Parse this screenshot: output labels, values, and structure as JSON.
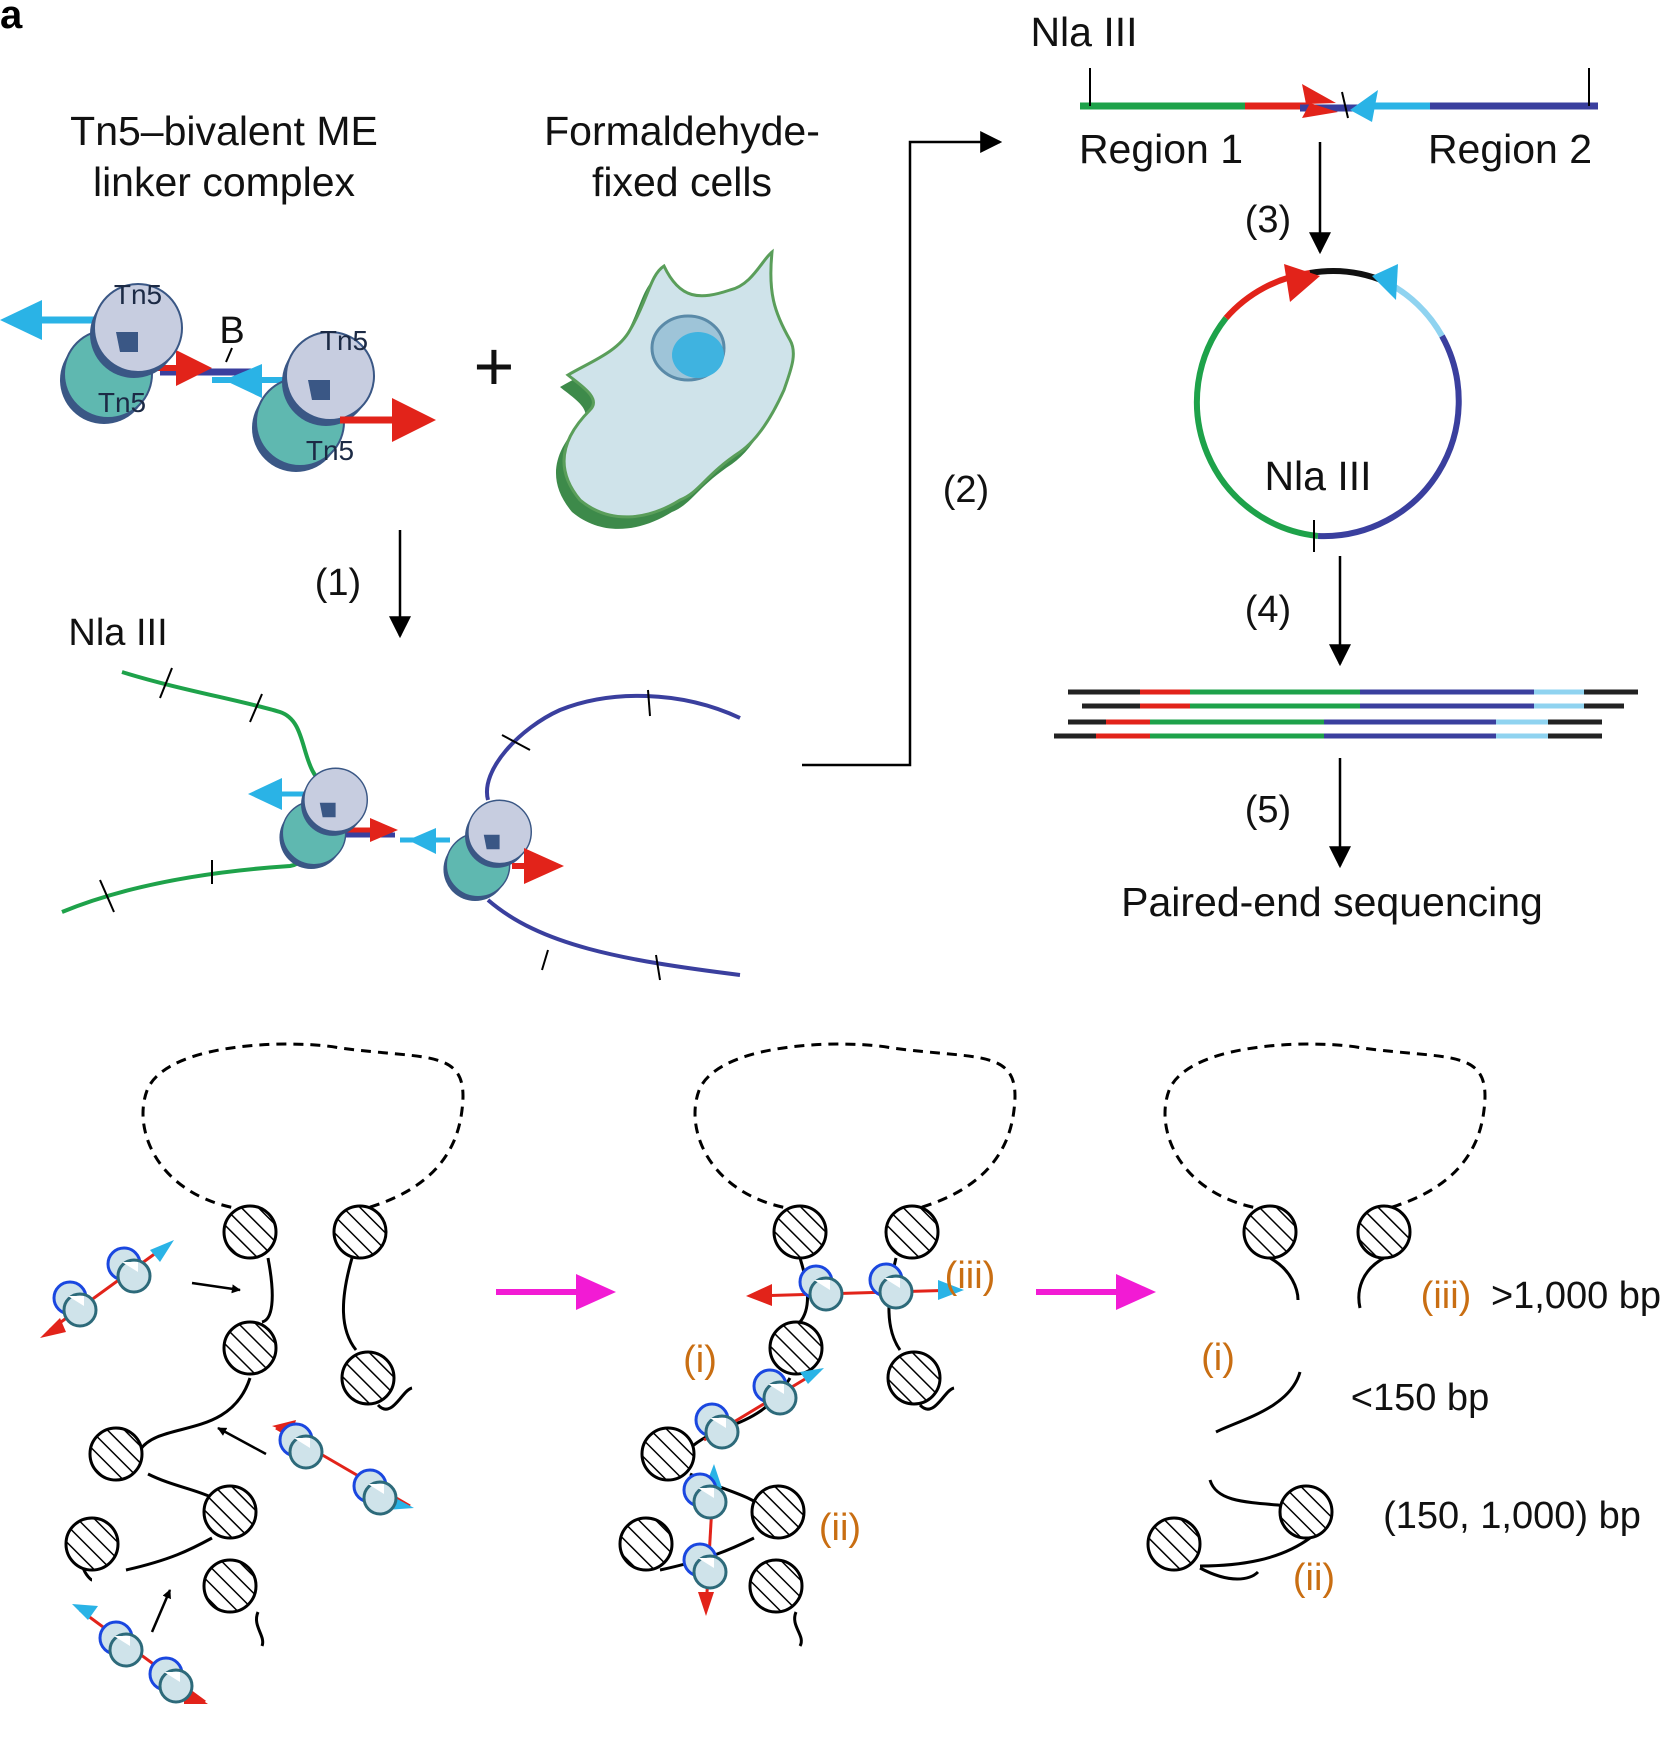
{
  "panel_letter": "a",
  "labels": {
    "complex_title_line1": "Tn5–bivalent ME",
    "complex_title_line2": "linker complex",
    "cells_title_line1": "Formaldehyde-",
    "cells_title_line2": "fixed cells",
    "plus": "+",
    "tn5": "Tn5",
    "biotin": "B",
    "nla_iii": "Nla III",
    "region1": "Region 1",
    "region2": "Region 2",
    "paired_end": "Paired-end sequencing"
  },
  "steps": [
    "(1)",
    "(2)",
    "(3)",
    "(4)",
    "(5)"
  ],
  "fragment_classes": {
    "i": "(i)",
    "ii": "(ii)",
    "iii": "(iii)",
    "size_i": "<150 bp",
    "size_ii": "(150, 1,000) bp",
    "size_iii": ">1,000 bp"
  },
  "colors": {
    "region1": "#1ea24a",
    "region2": "#3a3f9e",
    "me_red": "#e2231a",
    "me_cyan": "#2ab3e6",
    "tn5_top": "#c7cde0",
    "tn5_bottom": "#5fb8b0",
    "tn5_dark": "#3a5785",
    "cell_fill": "#cfe3ea",
    "cell_edge": "#5a9e5a",
    "magenta_arrow": "#f21bd4",
    "class_label": "#c96e12"
  }
}
